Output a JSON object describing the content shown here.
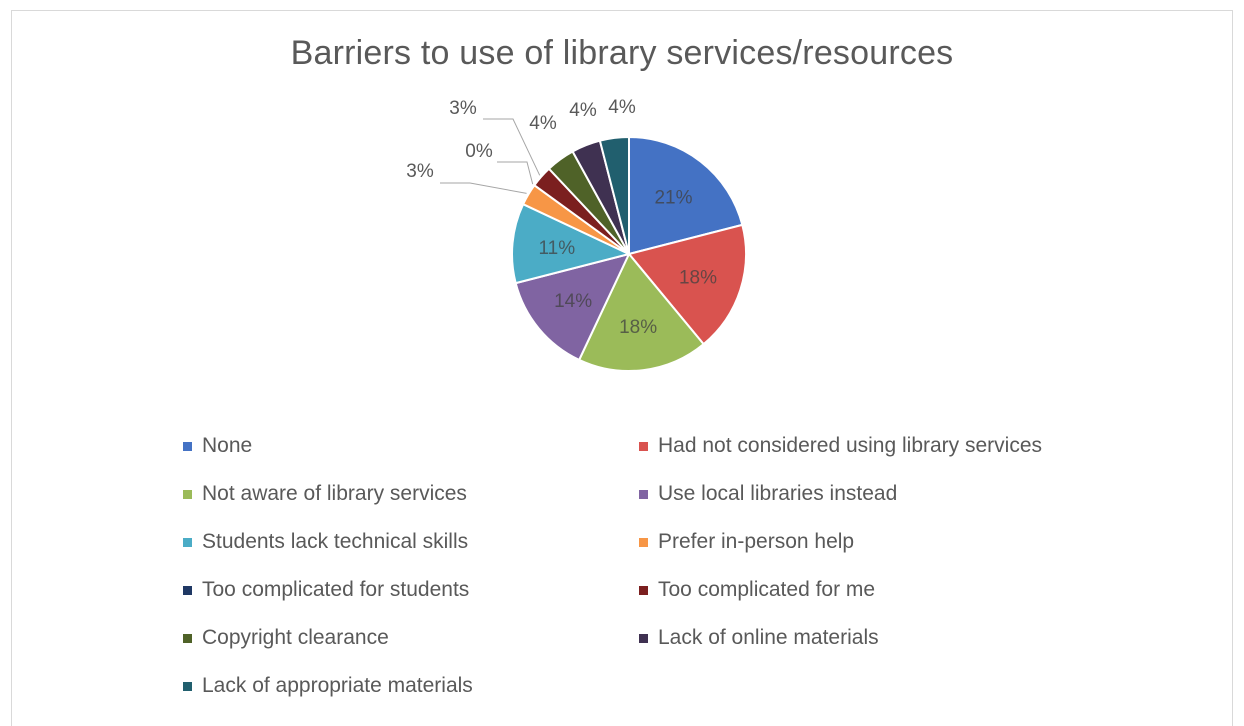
{
  "chart_data": {
    "type": "pie",
    "title": "Barriers to use of library services/resources",
    "slices": [
      {
        "label": "None",
        "value": 21,
        "data_label": "21%",
        "color": "#4472c4"
      },
      {
        "label": "Had not considered using library services",
        "value": 18,
        "data_label": "18%",
        "color": "#d9534f"
      },
      {
        "label": "Not aware of library services",
        "value": 18,
        "data_label": "18%",
        "color": "#9bbb59"
      },
      {
        "label": "Use local libraries instead",
        "value": 14,
        "data_label": "14%",
        "color": "#8064a2"
      },
      {
        "label": "Students lack technical skills",
        "value": 11,
        "data_label": "11%",
        "color": "#4bacc6"
      },
      {
        "label": "Prefer in-person help",
        "value": 3,
        "data_label": "3%",
        "color": "#f79646"
      },
      {
        "label": "Too complicated for students",
        "value": 0,
        "data_label": "0%",
        "color": "#1f3864"
      },
      {
        "label": "Too complicated for me",
        "value": 3,
        "data_label": "3%",
        "color": "#7b1f1f"
      },
      {
        "label": "Copyright clearance",
        "value": 4,
        "data_label": "4%",
        "color": "#4f6228"
      },
      {
        "label": "Lack of online materials",
        "value": 4,
        "data_label": "4%",
        "color": "#3f3151"
      },
      {
        "label": "Lack of appropriate materials",
        "value": 4,
        "data_label": "4%",
        "color": "#215f6e"
      }
    ],
    "legend_position": "bottom"
  }
}
